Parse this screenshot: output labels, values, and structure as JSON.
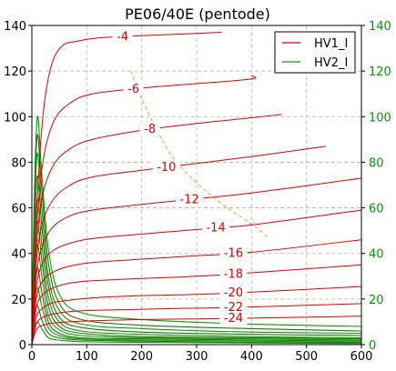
{
  "chart_data": {
    "type": "line",
    "title": "PE06/40E (pentode)",
    "xlabel": "",
    "ylabel": "",
    "xlim": [
      0,
      600
    ],
    "ylim": [
      0,
      140
    ],
    "x_ticks": [
      "0",
      "100",
      "200",
      "300",
      "400",
      "500",
      "600"
    ],
    "y_ticks": [
      "0",
      "20",
      "40",
      "60",
      "80",
      "100",
      "120",
      "140"
    ],
    "y2_ticks": [
      "0",
      "20",
      "40",
      "60",
      "80",
      "100",
      "120",
      "140"
    ],
    "grid": true,
    "legend_position": "top-right",
    "colors": {
      "hv1": "#e00000",
      "hv2": "#00a000",
      "hv2_dark": "#2f6a10",
      "dissipation": "#f0a030",
      "right_axis": "#009900",
      "grid": "#b0b0b0"
    },
    "legend": [
      "HV1_I",
      "HV2_I"
    ],
    "dissipation_curve": {
      "name": "",
      "x": [
        180,
        200,
        230,
        260,
        300,
        350,
        400,
        430
      ],
      "y": [
        120,
        108,
        93,
        81,
        71,
        61,
        53,
        47
      ]
    },
    "series": [
      {
        "grid_label": "-4",
        "x": [
          0,
          8,
          20,
          35,
          55,
          80,
          120,
          200,
          300,
          345
        ],
        "y": [
          0,
          55,
          100,
          122,
          131,
          133,
          134.5,
          135.5,
          136.5,
          137
        ]
      },
      {
        "grid_label": "-6",
        "x": [
          0,
          8,
          20,
          40,
          70,
          110,
          200,
          300,
          400,
          400
        ],
        "y": [
          0,
          48,
          80,
          98,
          106,
          110,
          112.5,
          114.5,
          116.5,
          118
        ]
      },
      {
        "grid_label": "-8",
        "x": [
          0,
          8,
          20,
          40,
          70,
          110,
          200,
          300,
          400,
          455
        ],
        "y": [
          0,
          42,
          66,
          79,
          86,
          90,
          94,
          97,
          99.5,
          101
        ]
      },
      {
        "grid_label": "-10",
        "x": [
          0,
          8,
          20,
          40,
          70,
          110,
          200,
          300,
          400,
          535
        ],
        "y": [
          0,
          36,
          54,
          64,
          70,
          73.5,
          76.5,
          79.5,
          82.5,
          87
        ]
      },
      {
        "grid_label": "-12",
        "x": [
          0,
          8,
          20,
          40,
          70,
          110,
          200,
          300,
          400,
          600
        ],
        "y": [
          0,
          30,
          44,
          52,
          56.5,
          59,
          61.5,
          64,
          66.5,
          73
        ]
      },
      {
        "grid_label": "-14",
        "x": [
          0,
          8,
          20,
          40,
          70,
          110,
          200,
          300,
          400,
          600
        ],
        "y": [
          0,
          25,
          36,
          41.5,
          44.5,
          46.5,
          48.5,
          50.5,
          52.5,
          59
        ]
      },
      {
        "grid_label": "-16",
        "x": [
          0,
          8,
          20,
          40,
          70,
          110,
          200,
          300,
          400,
          600
        ],
        "y": [
          0,
          20,
          28,
          32,
          34.5,
          36,
          37.5,
          39,
          40.5,
          46
        ]
      },
      {
        "grid_label": "-18",
        "x": [
          0,
          8,
          20,
          40,
          70,
          110,
          200,
          300,
          400,
          600
        ],
        "y": [
          0,
          16,
          22,
          25,
          27,
          28,
          29,
          30,
          31.5,
          35
        ]
      },
      {
        "grid_label": "-20",
        "x": [
          0,
          8,
          20,
          40,
          70,
          110,
          200,
          300,
          400,
          600
        ],
        "y": [
          0,
          12,
          16,
          18.5,
          19.5,
          20.5,
          21.5,
          22,
          23,
          25.5
        ]
      },
      {
        "grid_label": "-22",
        "x": [
          0,
          8,
          20,
          40,
          70,
          110,
          200,
          300,
          400,
          600
        ],
        "y": [
          0,
          9,
          12,
          13.5,
          14.5,
          15,
          15.5,
          16,
          16.5,
          18
        ]
      },
      {
        "grid_label": "-24",
        "x": [
          0,
          8,
          20,
          40,
          70,
          110,
          200,
          300,
          400,
          600
        ],
        "y": [
          0,
          6.5,
          8.5,
          9.5,
          10,
          10.5,
          11,
          11.3,
          11.6,
          12.5
        ]
      }
    ],
    "series_hv2": [
      {
        "x": [
          0,
          4,
          10,
          18,
          30,
          50,
          90,
          200,
          400,
          600
        ],
        "y": [
          0,
          60,
          100,
          75,
          42,
          22,
          14,
          11,
          9,
          8
        ]
      },
      {
        "x": [
          0,
          4,
          10,
          18,
          30,
          50,
          90,
          200,
          400,
          600
        ],
        "y": [
          0,
          55,
          92,
          68,
          36,
          18,
          11,
          8.5,
          7,
          6
        ]
      },
      {
        "x": [
          0,
          4,
          10,
          18,
          30,
          50,
          90,
          200,
          400,
          600
        ],
        "y": [
          0,
          50,
          84,
          60,
          30,
          15,
          9,
          7,
          5.5,
          5
        ]
      },
      {
        "x": [
          0,
          4,
          10,
          18,
          30,
          50,
          90,
          200,
          400,
          600
        ],
        "y": [
          0,
          44,
          74,
          52,
          26,
          12,
          7.5,
          5.5,
          4.5,
          4
        ]
      },
      {
        "x": [
          0,
          4,
          10,
          18,
          30,
          50,
          90,
          200,
          400,
          600
        ],
        "y": [
          0,
          38,
          64,
          44,
          21,
          10,
          6,
          4.5,
          3.5,
          3
        ]
      },
      {
        "x": [
          0,
          4,
          10,
          18,
          30,
          50,
          90,
          200,
          400,
          600
        ],
        "y": [
          0,
          32,
          54,
          37,
          17,
          8,
          5,
          3.5,
          3,
          2.5
        ]
      },
      {
        "x": [
          0,
          4,
          10,
          18,
          30,
          50,
          90,
          200,
          400,
          600
        ],
        "y": [
          0,
          26,
          44,
          30,
          13,
          6.5,
          4,
          3,
          2.5,
          2
        ]
      },
      {
        "x": [
          0,
          4,
          10,
          18,
          30,
          50,
          90,
          200,
          400,
          600
        ],
        "y": [
          0,
          20,
          34,
          23,
          10,
          5,
          3,
          2.5,
          2,
          1.5
        ]
      },
      {
        "x": [
          0,
          4,
          10,
          18,
          30,
          50,
          90,
          200,
          400,
          600
        ],
        "y": [
          0,
          15,
          25,
          17,
          7.5,
          4,
          2.5,
          2,
          1.5,
          1
        ]
      },
      {
        "x": [
          0,
          4,
          10,
          18,
          30,
          50,
          90,
          200,
          400,
          600
        ],
        "y": [
          0,
          10,
          17,
          11,
          5,
          3,
          2,
          1.5,
          1,
          0.8
        ]
      },
      {
        "x": [
          0,
          4,
          10,
          18,
          30,
          50,
          90,
          200,
          400,
          600
        ],
        "y": [
          0,
          6,
          10,
          7,
          3,
          2,
          1.3,
          1,
          0.7,
          0.5
        ]
      }
    ]
  }
}
